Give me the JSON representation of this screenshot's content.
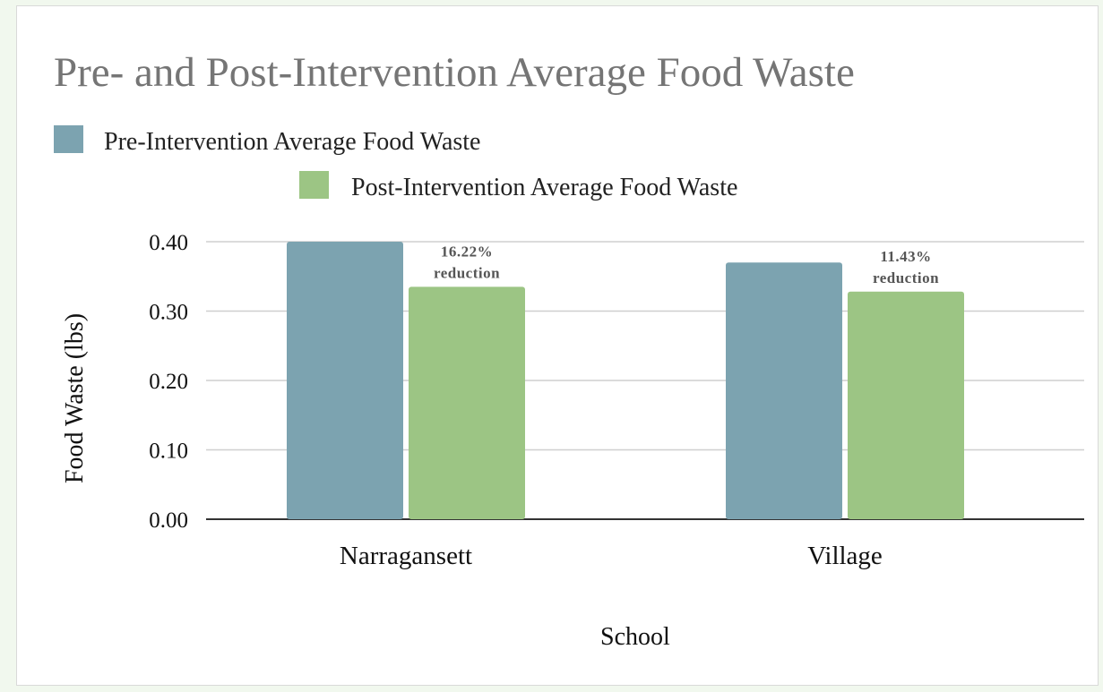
{
  "chart_data": {
    "type": "bar",
    "title": "Pre- and Post-Intervention Average Food Waste",
    "xlabel": "School",
    "ylabel": "Food Waste (lbs)",
    "categories": [
      "Narragansett",
      "Village"
    ],
    "series": [
      {
        "name": "Pre-Intervention Average Food Waste",
        "values": [
          0.4,
          0.37
        ],
        "color": "#7ca3b0"
      },
      {
        "name": "Post-Intervention Average Food Waste",
        "values": [
          0.335,
          0.328
        ],
        "color": "#9cc584"
      }
    ],
    "ylim": [
      0,
      0.4
    ],
    "yticks": [
      "0.00",
      "0.10",
      "0.20",
      "0.30",
      "0.40"
    ],
    "grid": true,
    "legend_position": "top-left",
    "annotations": [
      {
        "category": "Narragansett",
        "lines": [
          "16.22%",
          "reduction"
        ]
      },
      {
        "category": "Village",
        "lines": [
          "11.43%",
          "reduction"
        ]
      }
    ]
  }
}
